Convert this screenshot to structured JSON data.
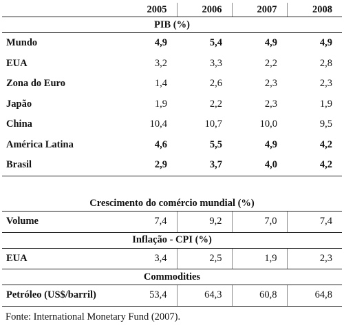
{
  "years": [
    "2005",
    "2006",
    "2007",
    "2008"
  ],
  "sections": {
    "pib": "PIB (%)",
    "comercio": "Crescimento do comércio mundial (%)",
    "inflacao": "Inflação - CPI (%)",
    "commodities": "Commodities"
  },
  "pib_rows": [
    {
      "label": "Mundo",
      "values": [
        "4,9",
        "5,4",
        "4,9",
        "4,9"
      ]
    },
    {
      "label": "EUA",
      "values": [
        "3,2",
        "3,3",
        "2,2",
        "2,8"
      ]
    },
    {
      "label": "Zona do Euro",
      "values": [
        "1,4",
        "2,6",
        "2,3",
        "2,3"
      ]
    },
    {
      "label": "Japão",
      "values": [
        "1,9",
        "2,2",
        "2,3",
        "1,9"
      ]
    },
    {
      "label": "China",
      "values": [
        "10,4",
        "10,7",
        "10,0",
        "9,5"
      ]
    },
    {
      "label": "América Latina",
      "values": [
        "4,6",
        "5,5",
        "4,9",
        "4,2"
      ]
    },
    {
      "label": "Brasil",
      "values": [
        "2,9",
        "3,7",
        "4,0",
        "4,2"
      ]
    }
  ],
  "comercio_row": {
    "label": "Volume",
    "values": [
      "7,4",
      "9,2",
      "7,0",
      "7,4"
    ]
  },
  "inflacao_row": {
    "label": "EUA",
    "values": [
      "3,4",
      "2,5",
      "1,9",
      "2,3"
    ]
  },
  "commodities_row": {
    "label": "Petróleo (US$/barril)",
    "values": [
      "53,4",
      "64,3",
      "60,8",
      "64,8"
    ]
  },
  "source": "Fonte: International Monetary Fund (2007)."
}
